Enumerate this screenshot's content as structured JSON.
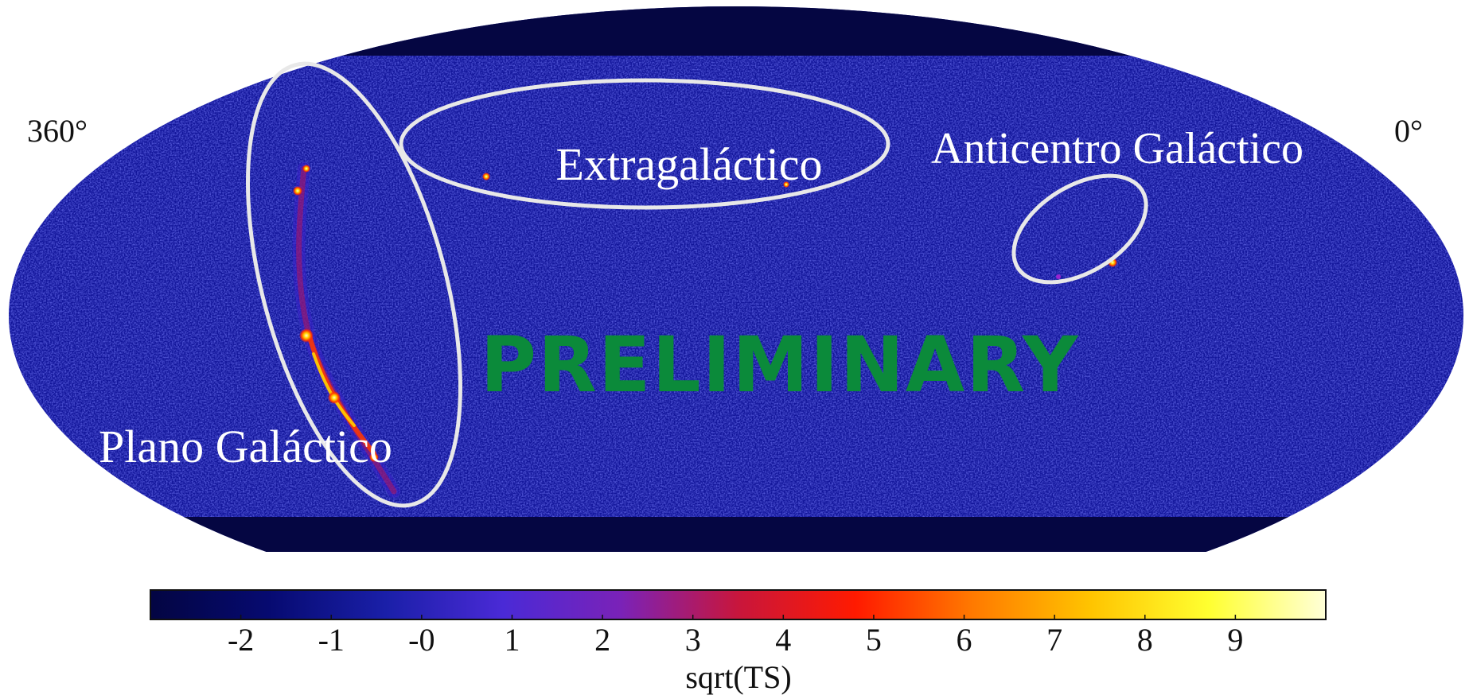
{
  "chart_data": {
    "type": "heatmap",
    "projection": "Mollweide all-sky",
    "title_partial": "",
    "lon_edge_labels": {
      "left": "360°",
      "right": "0°"
    },
    "watermark": "PRELIMINARY",
    "region_labels": {
      "galactic_plane": "Plano Galáctico",
      "extragalactic": "Extragaláctico",
      "anticenter": "Anticentro Galáctico"
    },
    "colorbar": {
      "label": "sqrt(TS)",
      "range": [
        -3,
        10
      ],
      "ticks": [
        -2,
        -1,
        0,
        1,
        2,
        3,
        4,
        5,
        6,
        7,
        8,
        9
      ],
      "tick_labels": [
        "-2",
        "-1",
        "-0",
        "1",
        "2",
        "3",
        "4",
        "5",
        "6",
        "7",
        "8",
        "9"
      ],
      "colormap": [
        "#030542",
        "#060a70",
        "#1a1fa8",
        "#4a2ad6",
        "#7a22b8",
        "#c8163c",
        "#ff1a00",
        "#ff7a00",
        "#ffc400",
        "#ffff30",
        "#ffffd8"
      ]
    },
    "sources": [
      {
        "region": "galactic_plane",
        "sqrt_ts": 9
      },
      {
        "region": "galactic_plane",
        "sqrt_ts": 8
      },
      {
        "region": "galactic_plane",
        "sqrt_ts": 10
      },
      {
        "region": "galactic_plane",
        "sqrt_ts": 9
      },
      {
        "region": "galactic_plane",
        "sqrt_ts": 7
      },
      {
        "region": "extragalactic",
        "sqrt_ts": 9
      },
      {
        "region": "extragalactic",
        "sqrt_ts": 8
      },
      {
        "region": "anticenter",
        "sqrt_ts": 9
      }
    ],
    "colors": {
      "background": "#12159a",
      "masked": "#050642",
      "outline": "#e8e8e8",
      "watermark": "#0b8a3a",
      "label_text": "#ffffff",
      "axis_text": "#111111"
    }
  }
}
